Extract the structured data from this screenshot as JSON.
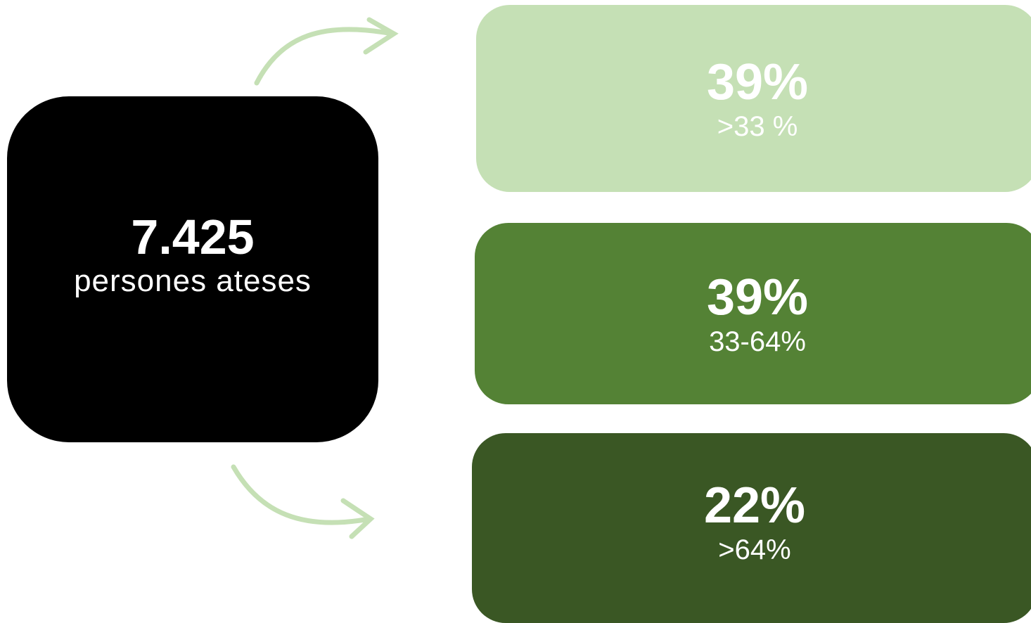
{
  "total": {
    "value": "7.425",
    "label": "persones ateses"
  },
  "groups": [
    {
      "percent": "39%",
      "range": ">33 %"
    },
    {
      "percent": "39%",
      "range": "33-64%"
    },
    {
      "percent": "22%",
      "range": ">64%"
    }
  ]
}
